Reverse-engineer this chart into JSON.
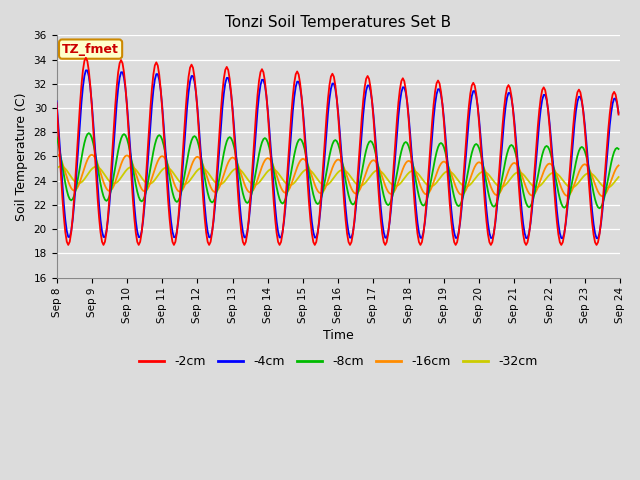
{
  "title": "Tonzi Soil Temperatures Set B",
  "xlabel": "Time",
  "ylabel": "Soil Temperature (C)",
  "ylim": [
    16,
    36
  ],
  "yticks": [
    16,
    18,
    20,
    22,
    24,
    26,
    28,
    30,
    32,
    34,
    36
  ],
  "series_colors": [
    "#ff0000",
    "#0000ff",
    "#00bb00",
    "#ff8c00",
    "#cccc00"
  ],
  "series_labels": [
    "-2cm",
    "-4cm",
    "-8cm",
    "-16cm",
    "-32cm"
  ],
  "annotation_text": "TZ_fmet",
  "annotation_bg": "#ffffcc",
  "annotation_border": "#cc8800",
  "annotation_text_color": "#cc0000",
  "bg_color": "#dcdcdc",
  "fig_bg": "#dcdcdc",
  "start_day": 8,
  "end_day": 23,
  "figsize": [
    6.4,
    4.8
  ],
  "dpi": 100,
  "tick_fontsize": 7.5,
  "label_fontsize": 9,
  "title_fontsize": 11
}
